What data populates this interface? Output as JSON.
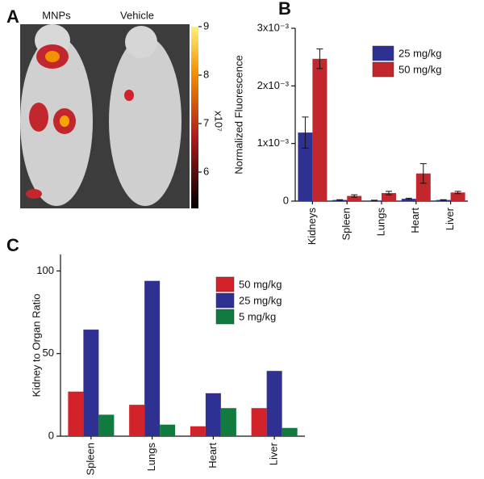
{
  "panel_a": {
    "panel_label": "A",
    "labels": [
      "MNPs",
      "Vehicle"
    ],
    "colorbar": {
      "lim": [
        5.25,
        9
      ],
      "ticks": [
        6,
        7,
        8,
        9
      ],
      "multiplier": "x10⁷"
    }
  },
  "chart_data": [
    {
      "type": "bar",
      "panel_label": "B",
      "y_label": "Normalized Fluorescence",
      "categories": [
        "Kidneys",
        "Spleen",
        "Lungs",
        "Heart",
        "Liver"
      ],
      "series": [
        {
          "name": "25 mg/kg",
          "color": "#2e3192",
          "values": [
            0.00119,
            2e-05,
            1e-05,
            4e-05,
            2e-05
          ],
          "errors": [
            0.00027,
            5e-06,
            5e-06,
            1e-05,
            5e-06
          ]
        },
        {
          "name": "50 mg/kg",
          "color": "#c1272d",
          "values": [
            0.00247,
            9e-05,
            0.00014,
            0.00048,
            0.00015
          ],
          "errors": [
            0.00017,
            2e-05,
            3e-05,
            0.00017,
            2e-05
          ]
        }
      ],
      "ylim": [
        0,
        0.003
      ],
      "yticks": [
        0,
        {
          "value": 0.001,
          "label": "1x10⁻³"
        },
        {
          "value": 0.002,
          "label": "2x10⁻³"
        },
        {
          "value": 0.003,
          "label": "3x10⁻³"
        }
      ]
    },
    {
      "type": "bar",
      "panel_label": "C",
      "y_label": "Kidney to Organ Ratio",
      "categories": [
        "Spleen",
        "Lungs",
        "Heart",
        "Liver"
      ],
      "series": [
        {
          "name": "50 mg/kg",
          "color": "#d2232a",
          "values": [
            27,
            19,
            6,
            17
          ]
        },
        {
          "name": "25 mg/kg",
          "color": "#2e3192",
          "values": [
            64.5,
            94,
            26,
            39.5
          ]
        },
        {
          "name": "5 mg/kg",
          "color": "#117a3e",
          "values": [
            13,
            7,
            17,
            5
          ]
        }
      ],
      "ylim": [
        0,
        110
      ],
      "yticks": [
        0,
        50,
        100
      ]
    }
  ]
}
